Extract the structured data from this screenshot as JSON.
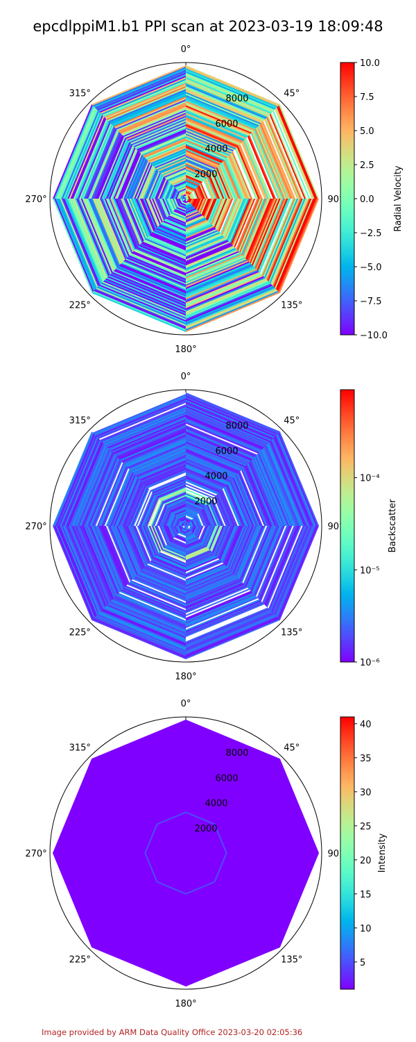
{
  "title": "epcdlppiM1.b1 PPI scan at 2023-03-19 18:09:48",
  "footer": "Image provided by ARM Data Quality Office 2023-03-20 02:05:36",
  "chart_data": [
    {
      "type": "polar",
      "angle_ticks": [
        "0°",
        "45°",
        "90°",
        "135°",
        "180°",
        "225°",
        "270°",
        "315°"
      ],
      "range_ticks": [
        2000,
        4000,
        6000,
        8000
      ],
      "range_tick_labels": [
        "2000",
        "4000",
        "6000",
        "8000"
      ],
      "rmax": 10000,
      "beam_directions_deg": [
        0,
        45,
        90,
        135,
        180,
        225,
        270,
        315
      ],
      "colorbar": {
        "label": "Radial Velocity",
        "scale": "linear",
        "range": [
          -10,
          10
        ],
        "ticks": [
          -10,
          -7.5,
          -5,
          -2.5,
          0,
          2.5,
          5,
          7.5,
          10
        ],
        "tick_labels": [
          "−10.0",
          "−7.5",
          "−5.0",
          "−2.5",
          "0.0",
          "2.5",
          "5.0",
          "7.5",
          "10.0"
        ],
        "colormap": "rainbow"
      },
      "field_pattern": "radial velocity streaks: mixed -10 to 10, near 0 in north sector, positive (red) east, negative (purple) south"
    },
    {
      "type": "polar",
      "angle_ticks": [
        "0°",
        "45°",
        "90°",
        "135°",
        "180°",
        "225°",
        "270°",
        "315°"
      ],
      "range_ticks": [
        2000,
        4000,
        6000,
        8000
      ],
      "range_tick_labels": [
        "2000",
        "4000",
        "6000",
        "8000"
      ],
      "rmax": 10000,
      "beam_directions_deg": [
        0,
        45,
        90,
        135,
        180,
        225,
        270,
        315
      ],
      "colorbar": {
        "label": "Backscatter",
        "scale": "log",
        "range": [
          1e-06,
          0.0009
        ],
        "ticks": [
          1e-06,
          1e-05,
          0.0001
        ],
        "tick_labels": [
          "10⁻⁶",
          "10⁻⁵",
          "10⁻⁴"
        ],
        "colormap": "rainbow"
      },
      "field_pattern": "backscatter mostly near 1e-6 (purple/blue), enhanced ring near 2000-3000 m"
    },
    {
      "type": "polar",
      "angle_ticks": [
        "0°",
        "45°",
        "90°",
        "135°",
        "180°",
        "225°",
        "270°",
        "315°"
      ],
      "range_ticks": [
        2000,
        4000,
        6000,
        8000
      ],
      "range_tick_labels": [
        "2000",
        "4000",
        "6000",
        "8000"
      ],
      "rmax": 10000,
      "beam_directions_deg": [
        0,
        45,
        90,
        135,
        180,
        225,
        270,
        315
      ],
      "colorbar": {
        "label": "Intensity",
        "scale": "linear",
        "range": [
          1,
          41
        ],
        "ticks": [
          5,
          10,
          15,
          20,
          25,
          30,
          35,
          40
        ],
        "tick_labels": [
          "5",
          "10",
          "15",
          "20",
          "25",
          "30",
          "35",
          "40"
        ],
        "colormap": "rainbow"
      },
      "field_pattern": "intensity uniformly about 1 (purple) with a faint octagonal ring near 3000 m"
    }
  ]
}
